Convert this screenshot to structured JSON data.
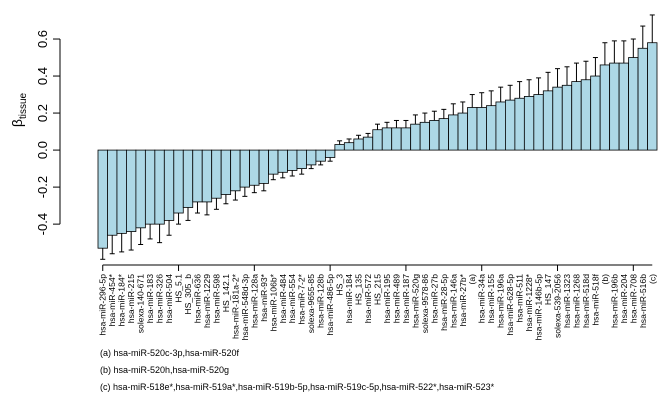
{
  "chart_data": {
    "type": "bar",
    "ylabel": "β",
    "ylabel_sub": "tissue",
    "color": "#add8e6",
    "error_color": "#000000",
    "ylim": [
      -0.61,
      0.8
    ],
    "yticks": [
      -0.4,
      -0.2,
      {
        "value": 0,
        "label": "0.0"
      },
      0.2,
      0.4,
      0.6
    ],
    "categories": [
      "hsa-miR-296-5p",
      "hsa-miR-454*",
      "hsa-miR-184*",
      "hsa-miR-215",
      "solexa-140-671",
      "hsa-miR-183",
      "hsa-miR-326",
      "hsa-miR-504",
      "HS_5.1",
      "HS_305_b",
      "hsa-miR-636",
      "hsa-miR-1229",
      "hsa-miR-598",
      "HS_142.1",
      "hsa-miR-181a-2*",
      "hsa-miR-548d-3p",
      "hsa-miR-128a",
      "hsa-miR-93*",
      "hsa-miR-106b*",
      "hsa-miR-484",
      "hsa-miR-554",
      "hsa-miR-7-2*",
      "solexa-9655-85",
      "hsa-miR-128b",
      "hsa-miR-486-5p",
      "HS_3",
      "hsa-miR-184",
      "HS_135",
      "hsa-miR-572",
      "HS_215",
      "hsa-miR-195",
      "hsa-miR-489",
      "hsa-miR-187",
      "hsa-miR-520g",
      "solexa-9578-86",
      "hsa-miR-27b",
      "hsa-miR-28-5p",
      "hsa-miR-146a",
      "hsa-miR-27b*",
      "(a)",
      "hsa-miR-34a",
      "hsa-miR-155",
      "hsa-miR-196a",
      "hsa-miR-628-5p",
      "hsa-miR-511",
      "hsa-miR-1228*",
      "hsa-miR-146b-5p",
      "HS_147",
      "solexa-539-2056",
      "hsa-miR-1323",
      "hsa-miR-1268",
      "hsa-miR-518d",
      "hsa-miR-518f",
      "(b)",
      "hsa-miR-196b",
      "hsa-miR-204",
      "hsa-miR-708",
      "hsa-miR-516b",
      "(c)"
    ],
    "values": [
      -0.53,
      -0.46,
      -0.45,
      -0.44,
      -0.42,
      -0.4,
      -0.4,
      -0.38,
      -0.34,
      -0.31,
      -0.28,
      -0.28,
      -0.26,
      -0.24,
      -0.22,
      -0.2,
      -0.19,
      -0.18,
      -0.13,
      -0.12,
      -0.11,
      -0.1,
      -0.08,
      -0.06,
      -0.04,
      0.03,
      0.04,
      0.06,
      0.07,
      0.11,
      0.12,
      0.12,
      0.12,
      0.14,
      0.15,
      0.16,
      0.17,
      0.19,
      0.2,
      0.23,
      0.23,
      0.24,
      0.26,
      0.27,
      0.28,
      0.29,
      0.3,
      0.32,
      0.34,
      0.35,
      0.37,
      0.38,
      0.4,
      0.46,
      0.47,
      0.47,
      0.5,
      0.55,
      0.58
    ],
    "errors": [
      0.06,
      0.1,
      0.1,
      0.1,
      0.09,
      0.08,
      0.1,
      0.08,
      0.06,
      0.07,
      0.06,
      0.07,
      0.06,
      0.05,
      0.05,
      0.05,
      0.04,
      0.04,
      0.03,
      0.03,
      0.03,
      0.03,
      0.02,
      0.02,
      0.02,
      0.02,
      0.02,
      0.02,
      0.02,
      0.03,
      0.03,
      0.04,
      0.04,
      0.05,
      0.05,
      0.05,
      0.05,
      0.06,
      0.06,
      0.07,
      0.08,
      0.08,
      0.08,
      0.08,
      0.09,
      0.09,
      0.09,
      0.1,
      0.1,
      0.1,
      0.1,
      0.1,
      0.1,
      0.12,
      0.12,
      0.12,
      0.1,
      0.12,
      0.15
    ],
    "notes": [
      "(a) hsa-miR-520c-3p,hsa-miR-520f",
      "(b) hsa-miR-520h,hsa-miR-520g",
      "(c) hsa-miR-518e*,hsa-miR-519a*,hsa-miR-519b-5p,hsa-miR-519c-5p,hsa-miR-522*,hsa-miR-523*"
    ]
  }
}
